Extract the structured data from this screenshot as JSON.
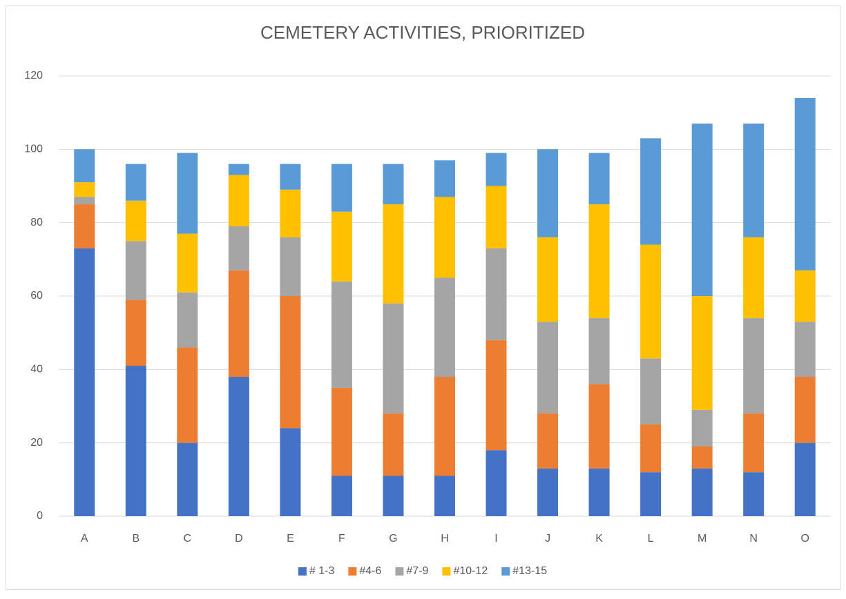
{
  "chart_data": {
    "type": "stacked_bar",
    "title": "CEMETERY ACTIVITIES, PRIORITIZED",
    "categories": [
      "A",
      "B",
      "C",
      "D",
      "E",
      "F",
      "G",
      "H",
      "I",
      "J",
      "K",
      "L",
      "M",
      "N",
      "O"
    ],
    "series": [
      {
        "name": "# 1-3",
        "color": "#4472c4",
        "values": [
          73,
          41,
          20,
          38,
          24,
          11,
          11,
          11,
          18,
          13,
          13,
          12,
          13,
          12,
          20
        ]
      },
      {
        "name": "#4-6",
        "color": "#ed7d31",
        "values": [
          12,
          18,
          26,
          29,
          36,
          24,
          17,
          27,
          30,
          15,
          23,
          13,
          6,
          16,
          18
        ]
      },
      {
        "name": "#7-9",
        "color": "#a5a5a5",
        "values": [
          2,
          16,
          15,
          12,
          16,
          29,
          30,
          27,
          25,
          25,
          18,
          18,
          10,
          26,
          15
        ]
      },
      {
        "name": "#10-12",
        "color": "#ffc000",
        "values": [
          4,
          11,
          16,
          14,
          13,
          19,
          27,
          22,
          17,
          23,
          31,
          31,
          31,
          22,
          14
        ]
      },
      {
        "name": "#13-15",
        "color": "#5b9bd5",
        "values": [
          9,
          10,
          22,
          3,
          7,
          13,
          11,
          10,
          9,
          24,
          14,
          29,
          47,
          31,
          47
        ]
      }
    ],
    "ylim": [
      0,
      120
    ],
    "yticks": [
      0,
      20,
      40,
      60,
      80,
      100,
      120
    ],
    "grid": true,
    "legend": "bottom"
  }
}
